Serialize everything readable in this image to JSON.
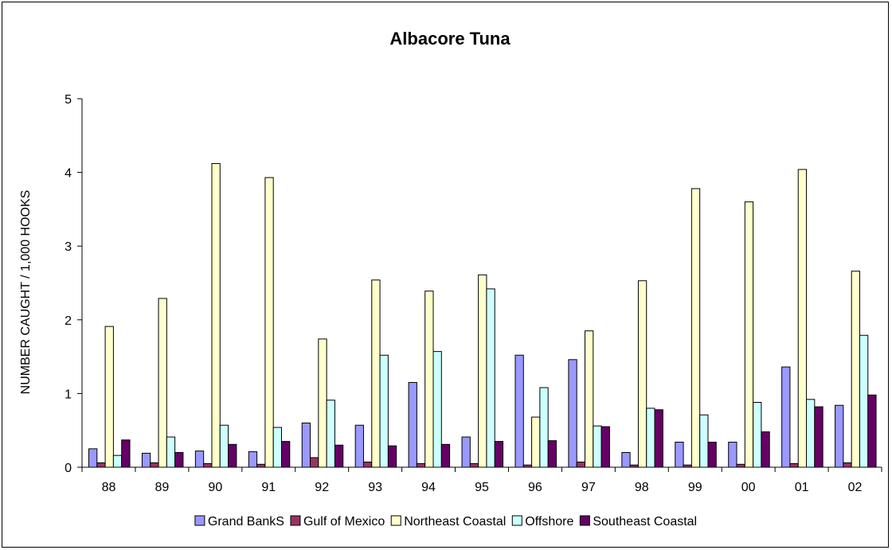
{
  "chart_data": {
    "type": "bar",
    "title": "Albacore Tuna",
    "xlabel": "",
    "ylabel": "NUMBER CAUGHT / 1,000 HOOKS",
    "ylim": [
      0,
      5
    ],
    "yticks": [
      "0",
      "1",
      "2",
      "3",
      "4",
      "5"
    ],
    "grid": false,
    "legend_position": "bottom",
    "categories": [
      "88",
      "89",
      "90",
      "91",
      "92",
      "93",
      "94",
      "95",
      "96",
      "97",
      "98",
      "99",
      "00",
      "01",
      "02"
    ],
    "series": [
      {
        "name": "Grand BankS",
        "color": "#9999ff",
        "values": [
          0.25,
          0.19,
          0.22,
          0.21,
          0.6,
          0.57,
          1.15,
          0.41,
          1.52,
          1.46,
          0.2,
          0.34,
          0.34,
          1.36,
          0.84
        ]
      },
      {
        "name": "Gulf of Mexico",
        "color": "#993366",
        "values": [
          0.06,
          0.06,
          0.05,
          0.04,
          0.13,
          0.07,
          0.05,
          0.05,
          0.03,
          0.07,
          0.03,
          0.03,
          0.04,
          0.05,
          0.06
        ]
      },
      {
        "name": "Northeast Coastal",
        "color": "#ffffcc",
        "values": [
          1.91,
          2.29,
          4.12,
          3.93,
          1.74,
          2.54,
          2.39,
          2.61,
          0.68,
          1.85,
          2.53,
          3.78,
          3.6,
          4.04,
          2.66
        ]
      },
      {
        "name": "Offshore",
        "color": "#ccffff",
        "values": [
          0.16,
          0.41,
          0.57,
          0.54,
          0.91,
          1.52,
          1.57,
          2.42,
          1.08,
          0.56,
          0.8,
          0.71,
          0.88,
          0.92,
          1.79
        ]
      },
      {
        "name": "Southeast Coastal",
        "color": "#660066",
        "values": [
          0.37,
          0.2,
          0.31,
          0.35,
          0.3,
          0.29,
          0.31,
          0.35,
          0.36,
          0.55,
          0.78,
          0.34,
          0.48,
          0.82,
          0.98
        ]
      }
    ]
  }
}
